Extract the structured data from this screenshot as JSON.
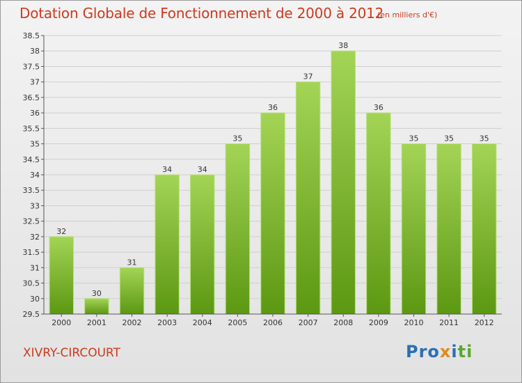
{
  "header": {
    "title": "Dotation Globale de Fonctionnement de 2000 à 2012",
    "subtitle": "(en milliers d'€)"
  },
  "footer": {
    "commune": "XIVRY-CIRCOURT",
    "logo": "Proxiti"
  },
  "colors": {
    "title": "#cc3a1e",
    "bar_light": "#9fd24f",
    "bar_dark": "#5e9a12",
    "axis": "#555555",
    "grid": "#cccccc"
  },
  "chart_data": {
    "type": "bar",
    "title": "Dotation Globale de Fonctionnement de 2000 à 2012",
    "subtitle": "(en milliers d'€)",
    "xlabel": "",
    "ylabel": "",
    "categories": [
      "2000",
      "2001",
      "2002",
      "2003",
      "2004",
      "2005",
      "2006",
      "2007",
      "2008",
      "2009",
      "2010",
      "2011",
      "2012"
    ],
    "values": [
      32,
      30,
      31,
      34,
      34,
      35,
      36,
      37,
      38,
      36,
      35,
      35,
      35
    ],
    "ylim": [
      29.5,
      38.5
    ],
    "yticks": [
      "29.5",
      "30",
      "30.5",
      "31",
      "31.5",
      "32",
      "32.5",
      "33",
      "33.5",
      "34",
      "34.5",
      "35",
      "35.5",
      "36",
      "36.5",
      "37",
      "37.5",
      "38",
      "38.5"
    ],
    "grid": true,
    "legend": "none"
  }
}
